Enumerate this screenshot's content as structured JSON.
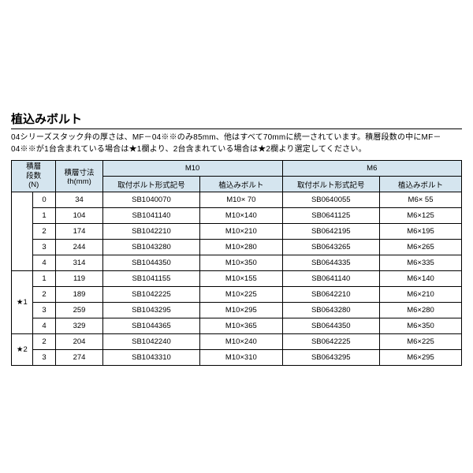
{
  "title": "植込みボルト",
  "description": "04シリーズスタック弁の厚さは、MF－04※※のみ85mm、他はすべて70mmに統一されています。積層段数の中にMF－04※※が1台含まれている場合は★1欄より、2台含まれている場合は★2欄より選定してください。",
  "headers": {
    "group": "積層\n段数\n(N)",
    "dim": "積層寸法\nℓh(mm)",
    "m10": "M10",
    "m6": "M6",
    "code": "取付ボルト形式記号",
    "bolt": "植込みボルト"
  },
  "groups": [
    {
      "star": "",
      "rows": [
        {
          "n": "0",
          "dim": "34",
          "m10code": "SB1040070",
          "m10bolt": "M10× 70",
          "m6code": "SB0640055",
          "m6bolt": "M6× 55"
        },
        {
          "n": "1",
          "dim": "104",
          "m10code": "SB1041140",
          "m10bolt": "M10×140",
          "m6code": "SB0641125",
          "m6bolt": "M6×125"
        },
        {
          "n": "2",
          "dim": "174",
          "m10code": "SB1042210",
          "m10bolt": "M10×210",
          "m6code": "SB0642195",
          "m6bolt": "M6×195"
        },
        {
          "n": "3",
          "dim": "244",
          "m10code": "SB1043280",
          "m10bolt": "M10×280",
          "m6code": "SB0643265",
          "m6bolt": "M6×265"
        },
        {
          "n": "4",
          "dim": "314",
          "m10code": "SB1044350",
          "m10bolt": "M10×350",
          "m6code": "SB0644335",
          "m6bolt": "M6×335"
        }
      ]
    },
    {
      "star": "★1",
      "rows": [
        {
          "n": "1",
          "dim": "119",
          "m10code": "SB1041155",
          "m10bolt": "M10×155",
          "m6code": "SB0641140",
          "m6bolt": "M6×140"
        },
        {
          "n": "2",
          "dim": "189",
          "m10code": "SB1042225",
          "m10bolt": "M10×225",
          "m6code": "SB0642210",
          "m6bolt": "M6×210"
        },
        {
          "n": "3",
          "dim": "259",
          "m10code": "SB1043295",
          "m10bolt": "M10×295",
          "m6code": "SB0643280",
          "m6bolt": "M6×280"
        },
        {
          "n": "4",
          "dim": "329",
          "m10code": "SB1044365",
          "m10bolt": "M10×365",
          "m6code": "SB0644350",
          "m6bolt": "M6×350"
        }
      ]
    },
    {
      "star": "★2",
      "rows": [
        {
          "n": "2",
          "dim": "204",
          "m10code": "SB1042240",
          "m10bolt": "M10×240",
          "m6code": "SB0642225",
          "m6bolt": "M6×225"
        },
        {
          "n": "3",
          "dim": "274",
          "m10code": "SB1043310",
          "m10bolt": "M10×310",
          "m6code": "SB0643295",
          "m6bolt": "M6×295"
        }
      ]
    }
  ]
}
